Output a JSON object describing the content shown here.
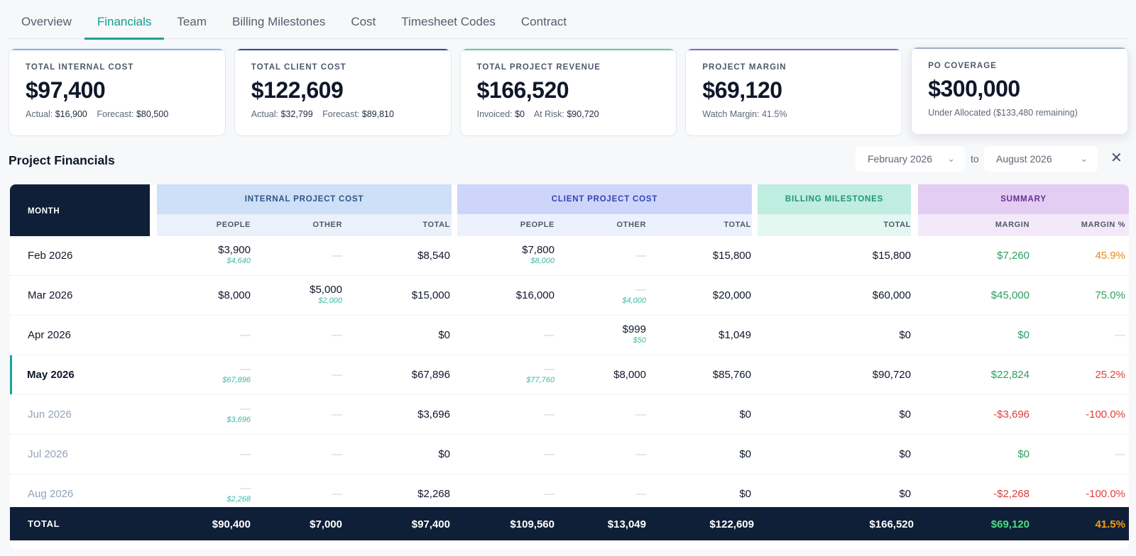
{
  "tabs": [
    "Overview",
    "Financials",
    "Team",
    "Billing Milestones",
    "Cost",
    "Timesheet Codes",
    "Contract"
  ],
  "active_tab": "Financials",
  "cards": {
    "internal": {
      "label": "TOTAL INTERNAL COST",
      "value": "$97,400",
      "a_label": "Actual:",
      "a_value": "$16,900",
      "b_label": "Forecast:",
      "b_value": "$80,500"
    },
    "client": {
      "label": "TOTAL CLIENT COST",
      "value": "$122,609",
      "a_label": "Actual:",
      "a_value": "$32,799",
      "b_label": "Forecast:",
      "b_value": "$89,810"
    },
    "revenue": {
      "label": "TOTAL PROJECT REVENUE",
      "value": "$166,520",
      "a_label": "Invoiced:",
      "a_value": "$0",
      "b_label": "At Risk:",
      "b_value": "$90,720"
    },
    "margin": {
      "label": "PROJECT MARGIN",
      "value": "$69,120",
      "sub": "Watch Margin: 41.5%"
    },
    "po": {
      "label": "PO COVERAGE",
      "value": "$300,000",
      "sub": "Under Allocated ($133,480 remaining)"
    }
  },
  "section": {
    "title": "Project Financials",
    "from": "February 2026",
    "to_label": "to",
    "to": "August 2026",
    "close": "✕"
  },
  "table": {
    "month_header": "MONTH",
    "groups": {
      "internal": "INTERNAL PROJECT COST",
      "client": "CLIENT PROJECT COST",
      "billing": "BILLING MILESTONES",
      "summary": "SUMMARY"
    },
    "subheaders": {
      "people": "PEOPLE",
      "other": "OTHER",
      "total": "TOTAL",
      "people2": "PEOPLE",
      "other2": "OTHER",
      "total2": "TOTAL",
      "btotal": "TOTAL",
      "margin": "MARGIN",
      "margin_pct": "MARGIN %"
    },
    "rows": [
      {
        "month": "Feb 2026",
        "ip": "$3,900",
        "ip_s": "$4,640",
        "io": "—",
        "io_s": "",
        "it": "$8,540",
        "cp": "$7,800",
        "cp_s": "$8,000",
        "co": "—",
        "co_s": "",
        "ct": "$15,800",
        "bt": "$15,800",
        "m": "$7,260",
        "mp": "45.9%"
      },
      {
        "month": "Mar 2026",
        "ip": "$8,000",
        "ip_s": "",
        "io": "$5,000",
        "io_s": "$2,000",
        "it": "$15,000",
        "cp": "$16,000",
        "cp_s": "",
        "co": "—",
        "co_s": "$4,000",
        "ct": "$20,000",
        "bt": "$60,000",
        "m": "$45,000",
        "mp": "75.0%"
      },
      {
        "month": "Apr 2026",
        "ip": "—",
        "ip_s": "",
        "io": "—",
        "io_s": "",
        "it": "$0",
        "cp": "—",
        "cp_s": "",
        "co": "$999",
        "co_s": "$50",
        "ct": "$1,049",
        "bt": "$0",
        "m": "$0",
        "mp": "—"
      },
      {
        "month": "May 2026",
        "ip": "—",
        "ip_s": "$67,896",
        "io": "—",
        "io_s": "",
        "it": "$67,896",
        "cp": "—",
        "cp_s": "$77,760",
        "co": "$8,000",
        "co_s": "",
        "ct": "$85,760",
        "bt": "$90,720",
        "m": "$22,824",
        "mp": "25.2%"
      },
      {
        "month": "Jun 2026",
        "ip": "—",
        "ip_s": "$3,696",
        "io": "—",
        "io_s": "",
        "it": "$3,696",
        "cp": "—",
        "cp_s": "",
        "co": "—",
        "co_s": "",
        "ct": "$0",
        "bt": "$0",
        "m": "-$3,696",
        "mp": "-100.0%"
      },
      {
        "month": "Jul 2026",
        "ip": "—",
        "ip_s": "",
        "io": "—",
        "io_s": "",
        "it": "$0",
        "cp": "—",
        "cp_s": "",
        "co": "—",
        "co_s": "",
        "ct": "$0",
        "bt": "$0",
        "m": "$0",
        "mp": "—"
      },
      {
        "month": "Aug 2026",
        "ip": "—",
        "ip_s": "$2,268",
        "io": "—",
        "io_s": "",
        "it": "$2,268",
        "cp": "—",
        "cp_s": "",
        "co": "—",
        "co_s": "",
        "ct": "$0",
        "bt": "$0",
        "m": "-$2,268",
        "mp": "-100.0%"
      }
    ],
    "totals": {
      "label": "TOTAL",
      "ip": "$90,400",
      "io": "$7,000",
      "it": "$97,400",
      "cp": "$109,560",
      "co": "$13,049",
      "ct": "$122,609",
      "bt": "$166,520",
      "m": "$69,120",
      "mp": "41.5%"
    }
  },
  "colors": {
    "accent": "#1aa296",
    "header_dark": "#0f1f38",
    "positive": "#2e9e5f",
    "negative": "#e03e3e",
    "warning": "#e08a1e"
  }
}
